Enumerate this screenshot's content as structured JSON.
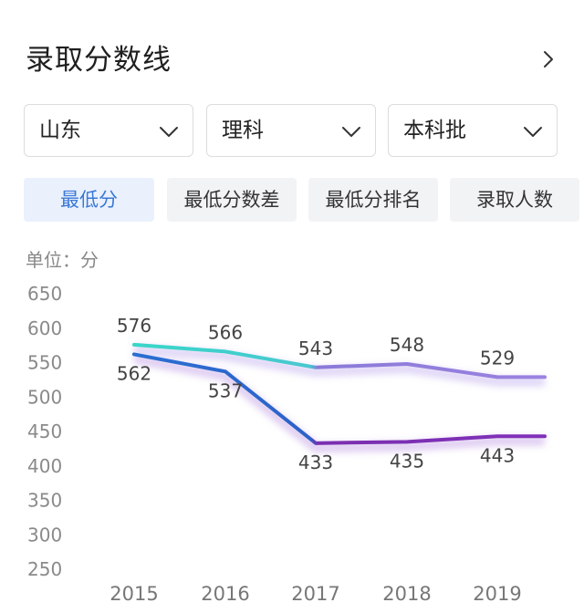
{
  "header": {
    "title": "录取分数线"
  },
  "filters": [
    {
      "value": "山东"
    },
    {
      "value": "理科"
    },
    {
      "value": "本科批"
    }
  ],
  "tabs": [
    {
      "label": "最低分",
      "active": true
    },
    {
      "label": "最低分数差",
      "active": false
    },
    {
      "label": "最低分排名",
      "active": false
    },
    {
      "label": "录取人数",
      "active": false
    }
  ],
  "icons": {
    "header_link": "chevron-right-icon",
    "dropdown": "chevron-down-icon"
  },
  "colors": {
    "active_tab_text": "#3a78d6",
    "series_upper_start": "#38d6c8",
    "series_upper_end": "#8a7ad8",
    "series_lower_start": "#2a6fd2",
    "series_lower_end": "#7a2fb0"
  },
  "chart_data": {
    "type": "line",
    "unit_label": "单位：分",
    "x": [
      "2015",
      "2016",
      "2017",
      "2018",
      "2019"
    ],
    "ylim": [
      250,
      650
    ],
    "yticks": [
      250,
      300,
      350,
      400,
      450,
      500,
      550,
      600,
      650
    ],
    "grid": false,
    "series": [
      {
        "values": [
          576,
          566,
          543,
          548,
          529
        ]
      },
      {
        "values": [
          562,
          537,
          433,
          435,
          443
        ]
      }
    ],
    "data_labels": [
      [
        "576",
        "566",
        "543",
        "548",
        "529"
      ],
      [
        "562",
        "537",
        "433",
        "435",
        "443"
      ]
    ]
  }
}
